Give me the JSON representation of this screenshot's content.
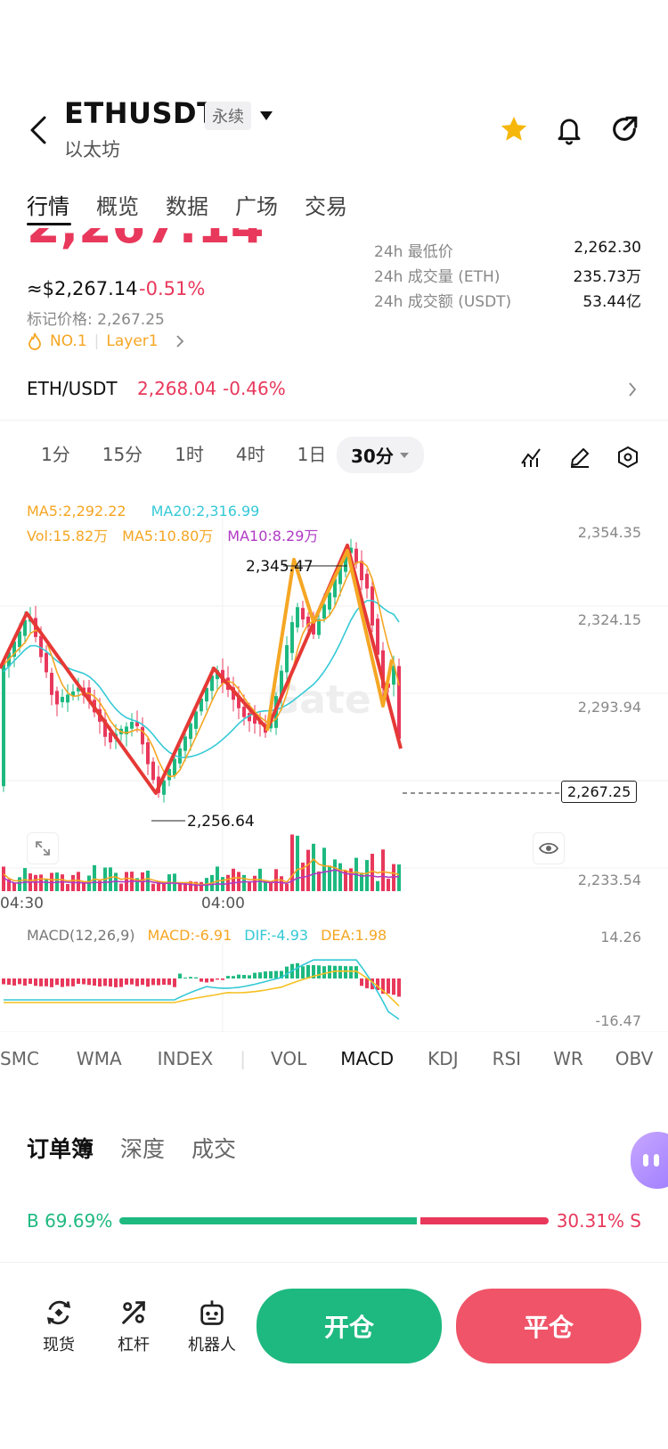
{
  "header": {
    "symbol": "ETHUSDT",
    "contract_tag": "永续",
    "name": "以太坊"
  },
  "nav_tabs": [
    "行情",
    "概览",
    "数据",
    "广场",
    "交易"
  ],
  "price": {
    "big": "2,267.14",
    "usd": "≈$2,267.14",
    "change": "-0.51%",
    "mark_price": "标记价格: 2,267.25",
    "rank": "NO.1",
    "category": "Layer1"
  },
  "stats": [
    {
      "label": "24h 最低价",
      "value": "2,262.30"
    },
    {
      "label": "24h 成交量 (ETH)",
      "value": "235.73万"
    },
    {
      "label": "24h 成交额 (USDT)",
      "value": "53.44亿"
    }
  ],
  "spot": {
    "pair": "ETH/USDT",
    "price": "2,268.04",
    "change": "-0.46%"
  },
  "timeframes": [
    "1分",
    "15分",
    "1时",
    "4时",
    "1日"
  ],
  "timeframe_selected": "30分",
  "ma_legend": {
    "ma5": "MA5:2,292.22",
    "ma20": "MA20:2,316.99"
  },
  "vol_legend": {
    "vol": "Vol:15.82万",
    "ma5": "MA5:10.80万",
    "ma10": "MA10:8.29万"
  },
  "chart": {
    "y_ticks": [
      "2,354.35",
      "2,324.15",
      "2,293.94",
      "2,233.54"
    ],
    "high_label": "2,345.47",
    "low_label": "2,256.64",
    "current": "2,267.25",
    "x_ticks": [
      "04:30",
      "04:00"
    ],
    "colors": {
      "up": "#1eb980",
      "down": "#e8385b",
      "ma5": "#f5a623",
      "ma20": "#35c9d6",
      "zigzag": "#e53935"
    }
  },
  "macd": {
    "label": "MACD(12,26,9)",
    "macd": "MACD:-6.91",
    "dif": "DIF:-4.93",
    "dea": "DEA:1.98",
    "top": "14.26",
    "bottom": "-16.47"
  },
  "indicators": [
    "SMC",
    "WMA",
    "INDEX",
    "VOL",
    "MACD",
    "KDJ",
    "RSI",
    "WR",
    "OBV"
  ],
  "indicator_selected": "MACD",
  "book_tabs": [
    "订单簿",
    "深度",
    "成交"
  ],
  "ratio": {
    "buy": "B 69.69%",
    "sell": "30.31% S",
    "buy_fraction": 0.6969
  },
  "bottom_nav": [
    "现货",
    "杠杆",
    "机器人"
  ],
  "actions": {
    "open": "开仓",
    "close": "平仓"
  }
}
